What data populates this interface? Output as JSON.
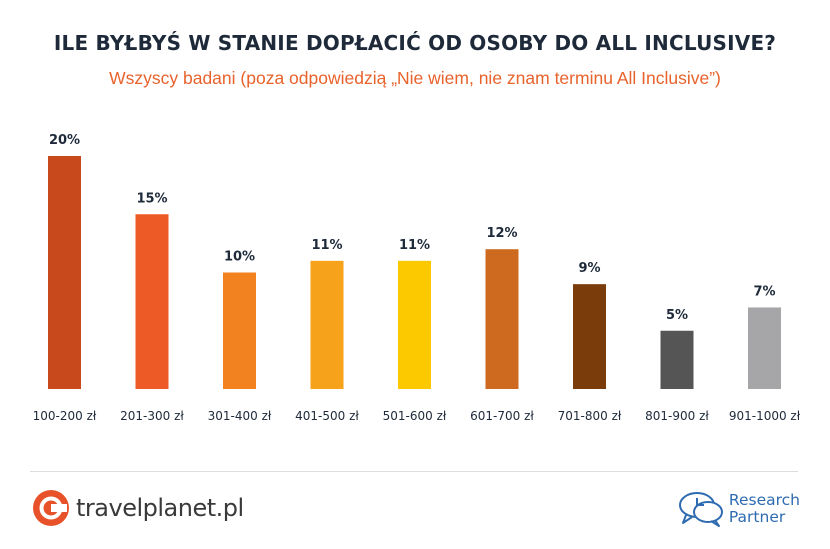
{
  "chart_data": {
    "type": "bar",
    "title": "ILE BYŁBYŚ W STANIE DOPŁACIĆ OD OSOBY DO ALL INCLUSIVE?",
    "subtitle": "Wszyscy badani (poza odpowiedzią „Nie wiem, nie znam terminu All Inclusive”)",
    "categories": [
      "100-200 zł",
      "201-300 zł",
      "301-400 zł",
      "401-500 zł",
      "501-600 zł",
      "601-700 zł",
      "701-800 zł",
      "801-900 zł",
      "901-1000 zł"
    ],
    "values": [
      20,
      15,
      10,
      11,
      11,
      12,
      9,
      5,
      7
    ],
    "value_labels": [
      "20%",
      "15%",
      "10%",
      "11%",
      "11%",
      "12%",
      "9%",
      "5%",
      "7%"
    ],
    "bar_colors": [
      "#c84a1c",
      "#ee5a25",
      "#f28120",
      "#f7a21b",
      "#fcc800",
      "#cd6a1f",
      "#7a3c0a",
      "#555555",
      "#a6a6a8"
    ],
    "xlabel": "",
    "ylabel": "",
    "ylim": [
      0,
      20
    ],
    "grid": false,
    "legend": "none"
  },
  "footer": {
    "left_brand": "travelplanet.pl",
    "left_logo_icon": "travelplanet-logo-icon",
    "right_brand_line1": "Research",
    "right_brand_line2": "Partner",
    "right_logo_icon": "research-partner-logo-icon",
    "left_color": "#e8522a",
    "right_color": "#2e6bb0"
  }
}
